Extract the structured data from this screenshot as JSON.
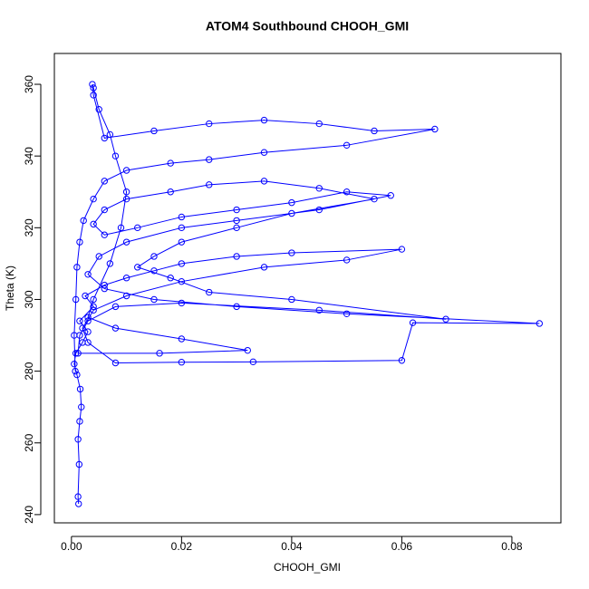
{
  "chart_data": {
    "type": "line",
    "title": "ATOM4 Southbound CHOOH_GMI",
    "x_label": "CHOOH_GMI",
    "y_label": "Theta (K)",
    "color": "#0000ff",
    "markers": true,
    "xlim": [
      -0.0031,
      0.0889
    ],
    "ylim": [
      237.7,
      368.6
    ],
    "xticks": [
      {
        "value": 0,
        "label": "0.00"
      },
      0.02,
      0.04,
      0.06,
      0.08
    ],
    "yticks": [
      240,
      260,
      280,
      300,
      320,
      340,
      360
    ],
    "x": [
      0.0013,
      0.0012,
      0.0014,
      0.0012,
      0.0015,
      0.0018,
      0.0016,
      0.001,
      0.0005,
      0.0008,
      0.002,
      0.003,
      0.0015,
      0.004,
      0.0025,
      0.006,
      0.01,
      0.015,
      0.02,
      0.03,
      0.04,
      0.06,
      0.05,
      0.035,
      0.02,
      0.01,
      0.004,
      0.002,
      0.003,
      0.008,
      0.02,
      0.033,
      0.06,
      0.062,
      0.085,
      0.05,
      0.03,
      0.015,
      0.006,
      0.003,
      0.005,
      0.01,
      0.02,
      0.03,
      0.045,
      0.058,
      0.05,
      0.04,
      0.03,
      0.02,
      0.012,
      0.006,
      0.004,
      0.006,
      0.01,
      0.018,
      0.025,
      0.035,
      0.045,
      0.055,
      0.04,
      0.03,
      0.02,
      0.015,
      0.012,
      0.018,
      0.025,
      0.04,
      0.068,
      0.045,
      0.02,
      0.008,
      0.003,
      0.0015,
      0.0012,
      0.016,
      0.032,
      0.02,
      0.008,
      0.003,
      0.004,
      0.007,
      0.009,
      0.01,
      0.008,
      0.007,
      0.005,
      0.004,
      0.0038,
      0.004,
      0.006,
      0.015,
      0.025,
      0.035,
      0.045,
      0.055,
      0.066,
      0.05,
      0.035,
      0.025,
      0.018,
      0.01,
      0.006,
      0.004,
      0.0022,
      0.0015,
      0.001,
      0.0008,
      0.0005,
      0.0007
    ],
    "values": [
      243,
      245,
      254,
      261,
      266,
      270,
      275,
      279,
      282,
      285,
      288,
      291,
      294,
      298,
      301,
      304,
      306,
      308,
      310,
      312,
      313,
      314,
      311,
      309,
      305,
      301,
      297,
      292,
      288,
      282.3,
      282.5,
      282.6,
      283,
      293.5,
      293.3,
      296,
      298,
      300,
      303,
      307,
      312,
      316,
      320,
      322,
      325,
      329,
      330,
      327,
      325,
      323,
      320,
      318,
      321,
      325,
      328,
      330,
      332,
      333,
      331,
      328,
      324,
      320,
      316,
      312,
      309,
      306,
      302,
      300,
      294.5,
      297,
      299,
      298,
      294,
      290,
      285,
      285,
      285.8,
      289,
      292,
      295,
      300,
      310,
      320,
      330,
      340,
      346,
      353,
      359,
      360,
      357,
      345,
      347,
      349,
      350,
      349,
      347,
      347.5,
      343,
      341,
      339,
      338,
      336,
      333,
      328,
      322,
      316,
      309,
      300,
      290,
      280
    ]
  }
}
